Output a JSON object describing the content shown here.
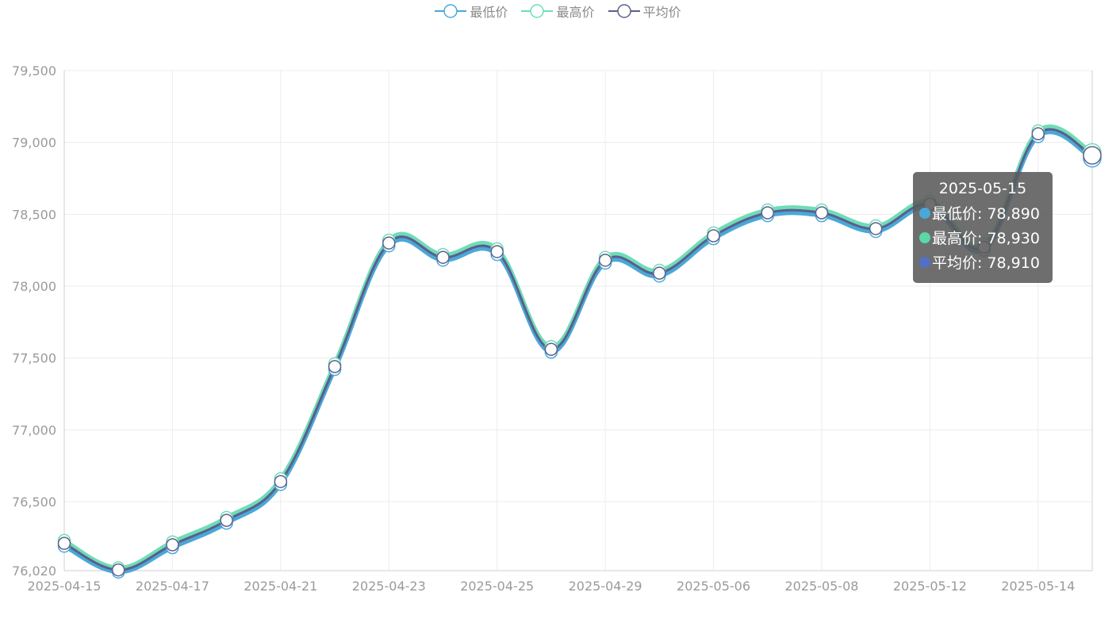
{
  "legend": [
    {
      "name": "最低价",
      "color": "#4aa8d8"
    },
    {
      "name": "最高价",
      "color": "#6fdcb8"
    },
    {
      "name": "平均价",
      "color": "#5a5f8a"
    }
  ],
  "tooltip": {
    "date": "2025-05-15",
    "rows": [
      {
        "label": "最低价: 78,890",
        "color": "#4aa8d8"
      },
      {
        "label": "最高价: 78,930",
        "color": "#5ad8a6"
      },
      {
        "label": "平均价: 78,910",
        "color": "#5470c6"
      }
    ]
  },
  "chart_data": {
    "type": "line",
    "x": [
      "2025-04-15",
      "2025-04-16",
      "2025-04-17",
      "2025-04-18",
      "2025-04-21",
      "2025-04-22",
      "2025-04-23",
      "2025-04-24",
      "2025-04-25",
      "2025-04-28",
      "2025-04-29",
      "2025-04-30",
      "2025-05-06",
      "2025-05-07",
      "2025-05-08",
      "2025-05-09",
      "2025-05-12",
      "2025-05-13",
      "2025-05-14",
      "2025-05-15"
    ],
    "xtick_labels": [
      "2025-04-15",
      "2025-04-17",
      "2025-04-21",
      "2025-04-23",
      "2025-04-25",
      "2025-04-29",
      "2025-05-06",
      "2025-05-08",
      "2025-05-12",
      "2025-05-14"
    ],
    "series": [
      {
        "name": "最低价",
        "color": "#4aa8d8",
        "values": [
          76190,
          76010,
          76180,
          76350,
          76620,
          77420,
          78280,
          78180,
          78220,
          77540,
          78160,
          78070,
          78330,
          78490,
          78490,
          78380,
          78550,
          78250,
          79040,
          78890
        ]
      },
      {
        "name": "最高价",
        "color": "#6fdcb8",
        "values": [
          76230,
          76040,
          76220,
          76390,
          76660,
          77460,
          78320,
          78220,
          78260,
          77580,
          78200,
          78110,
          78370,
          78530,
          78530,
          78420,
          78590,
          78290,
          79080,
          78930
        ]
      },
      {
        "name": "平均价",
        "color": "#5a5f8a",
        "values": [
          76210,
          76025,
          76200,
          76370,
          76640,
          77440,
          78300,
          78200,
          78240,
          77560,
          78180,
          78090,
          78350,
          78510,
          78510,
          78400,
          78570,
          78270,
          79060,
          78910
        ]
      }
    ],
    "y_ticks": [
      "76,020",
      "76,500",
      "77,000",
      "77,500",
      "78,000",
      "78,500",
      "79,000",
      "79,500"
    ],
    "ylim": [
      76020,
      79500
    ],
    "grid": true,
    "legend_position": "top-center",
    "highlighted_index": 19
  }
}
